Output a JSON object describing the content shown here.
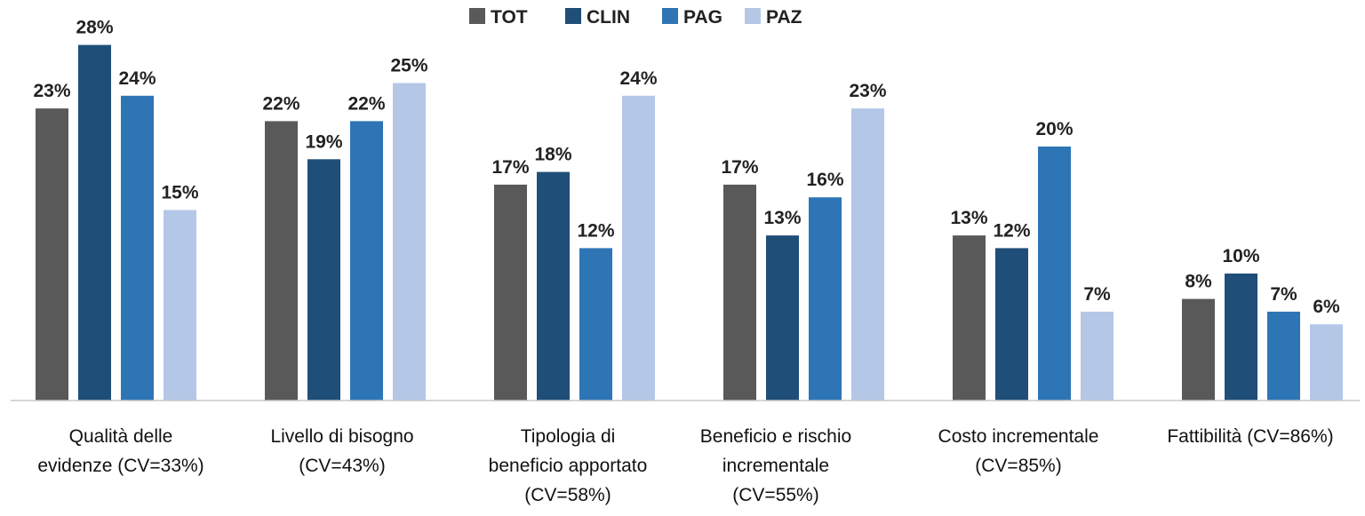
{
  "chart_data": {
    "type": "bar",
    "title": "",
    "xlabel": "",
    "ylabel": "",
    "ylim": [
      0,
      30
    ],
    "grid": false,
    "legend_position": "top-center",
    "categories": [
      [
        "Qualità delle",
        "evidenze (CV=33%)"
      ],
      [
        "Livello di bisogno",
        "(CV=43%)"
      ],
      [
        "Tipologia di",
        "beneficio apportato",
        "(CV=58%)"
      ],
      [
        "Beneficio e rischio",
        "incrementale",
        "(CV=55%)"
      ],
      [
        "Costo incrementale",
        "(CV=85%)"
      ],
      [
        "Fattibilità (CV=86%)"
      ]
    ],
    "series": [
      {
        "name": "TOT",
        "color": "#595959",
        "values": [
          23,
          22,
          17,
          17,
          13,
          8
        ],
        "labels": [
          "23%",
          "22%",
          "17%",
          "17%",
          "13%",
          "8%"
        ]
      },
      {
        "name": "CLIN",
        "color": "#1f4e79",
        "values": [
          28,
          19,
          18,
          13,
          12,
          10
        ],
        "labels": [
          "28%",
          "19%",
          "18%",
          "13%",
          "12%",
          "10%"
        ]
      },
      {
        "name": "PAG",
        "color": "#2e75b6",
        "values": [
          24,
          22,
          12,
          16,
          20,
          7
        ],
        "labels": [
          "24%",
          "22%",
          "12%",
          "16%",
          "20%",
          "7%"
        ]
      },
      {
        "name": "PAZ",
        "color": "#b4c7e7",
        "values": [
          15,
          25,
          24,
          23,
          7,
          6
        ],
        "labels": [
          "15%",
          "25%",
          "24%",
          "23%",
          "7%",
          "6%"
        ]
      }
    ]
  }
}
